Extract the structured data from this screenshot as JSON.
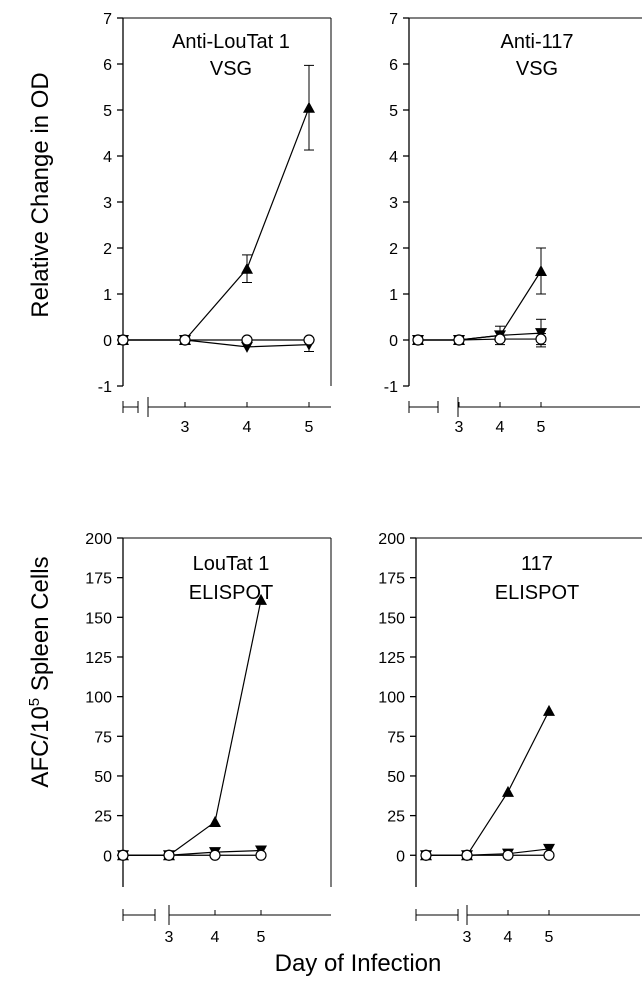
{
  "figure": {
    "ylabel_top": "Relative Change in OD",
    "ylabel_bottom_prefix": "AFC/10",
    "ylabel_bottom_sup": "5",
    "ylabel_bottom_suffix": " Spleen Cells",
    "xlabel": "Day of Infection"
  },
  "chart_data": [
    {
      "type": "line",
      "title": [
        "Anti-LouTat 1",
        "VSG"
      ],
      "x_positions": [
        1,
        2,
        3,
        4
      ],
      "x_ticklabels": [
        "3",
        "4",
        "5"
      ],
      "ylim": [
        -1,
        7
      ],
      "yticks": [
        -1,
        0,
        1,
        2,
        3,
        4,
        5,
        6,
        7
      ],
      "series": [
        {
          "marker": "triangle-up",
          "values": [
            0,
            0,
            1.55,
            5.05
          ],
          "err": [
            0.05,
            0.05,
            0.3,
            0.92
          ]
        },
        {
          "marker": "triangle-down",
          "values": [
            0,
            0,
            -0.15,
            -0.1
          ],
          "err": [
            0,
            0,
            0,
            0.15
          ]
        },
        {
          "marker": "circle-open",
          "values": [
            0,
            0,
            0,
            0
          ],
          "err": [
            0,
            0,
            0,
            0
          ]
        }
      ]
    },
    {
      "type": "line",
      "title": [
        "Anti-117",
        "VSG"
      ],
      "x_positions": [
        1,
        2,
        3,
        4
      ],
      "x_ticklabels": [
        "3",
        "4",
        "5"
      ],
      "ylim": [
        -1,
        7
      ],
      "yticks": [
        -1,
        0,
        1,
        2,
        3,
        4,
        5,
        6,
        7
      ],
      "series": [
        {
          "marker": "triangle-up",
          "values": [
            0,
            0,
            0.1,
            1.5
          ],
          "err": [
            0.05,
            0.05,
            0.2,
            0.5
          ]
        },
        {
          "marker": "triangle-down",
          "values": [
            0,
            0,
            0.1,
            0.15
          ],
          "err": [
            0,
            0,
            0,
            0.3
          ]
        },
        {
          "marker": "circle-open",
          "values": [
            0,
            0,
            0.02,
            0.02
          ],
          "err": [
            0,
            0,
            0,
            0.12
          ]
        }
      ]
    },
    {
      "type": "line",
      "title": [
        "LouTat 1",
        "ELISPOT"
      ],
      "x_positions": [
        1,
        2,
        3,
        4
      ],
      "x_ticklabels": [
        "3",
        "4",
        "5"
      ],
      "ylim": [
        -20,
        200
      ],
      "yticks": [
        0,
        25,
        50,
        75,
        100,
        125,
        150,
        175,
        200
      ],
      "series": [
        {
          "marker": "triangle-up",
          "values": [
            0,
            0,
            21,
            161
          ]
        },
        {
          "marker": "triangle-down",
          "values": [
            0,
            0,
            2,
            3
          ]
        },
        {
          "marker": "circle-open",
          "values": [
            0,
            0,
            0,
            0
          ]
        }
      ]
    },
    {
      "type": "line",
      "title": [
        "117",
        "ELISPOT"
      ],
      "x_positions": [
        1,
        2,
        3,
        4
      ],
      "x_ticklabels": [
        "3",
        "4",
        "5"
      ],
      "ylim": [
        -20,
        200
      ],
      "yticks": [
        0,
        25,
        50,
        75,
        100,
        125,
        150,
        175,
        200
      ],
      "series": [
        {
          "marker": "triangle-up",
          "values": [
            0,
            0,
            40,
            91
          ]
        },
        {
          "marker": "triangle-down",
          "values": [
            0,
            0,
            1,
            4
          ]
        },
        {
          "marker": "circle-open",
          "values": [
            0,
            0,
            0,
            0
          ]
        }
      ]
    }
  ]
}
